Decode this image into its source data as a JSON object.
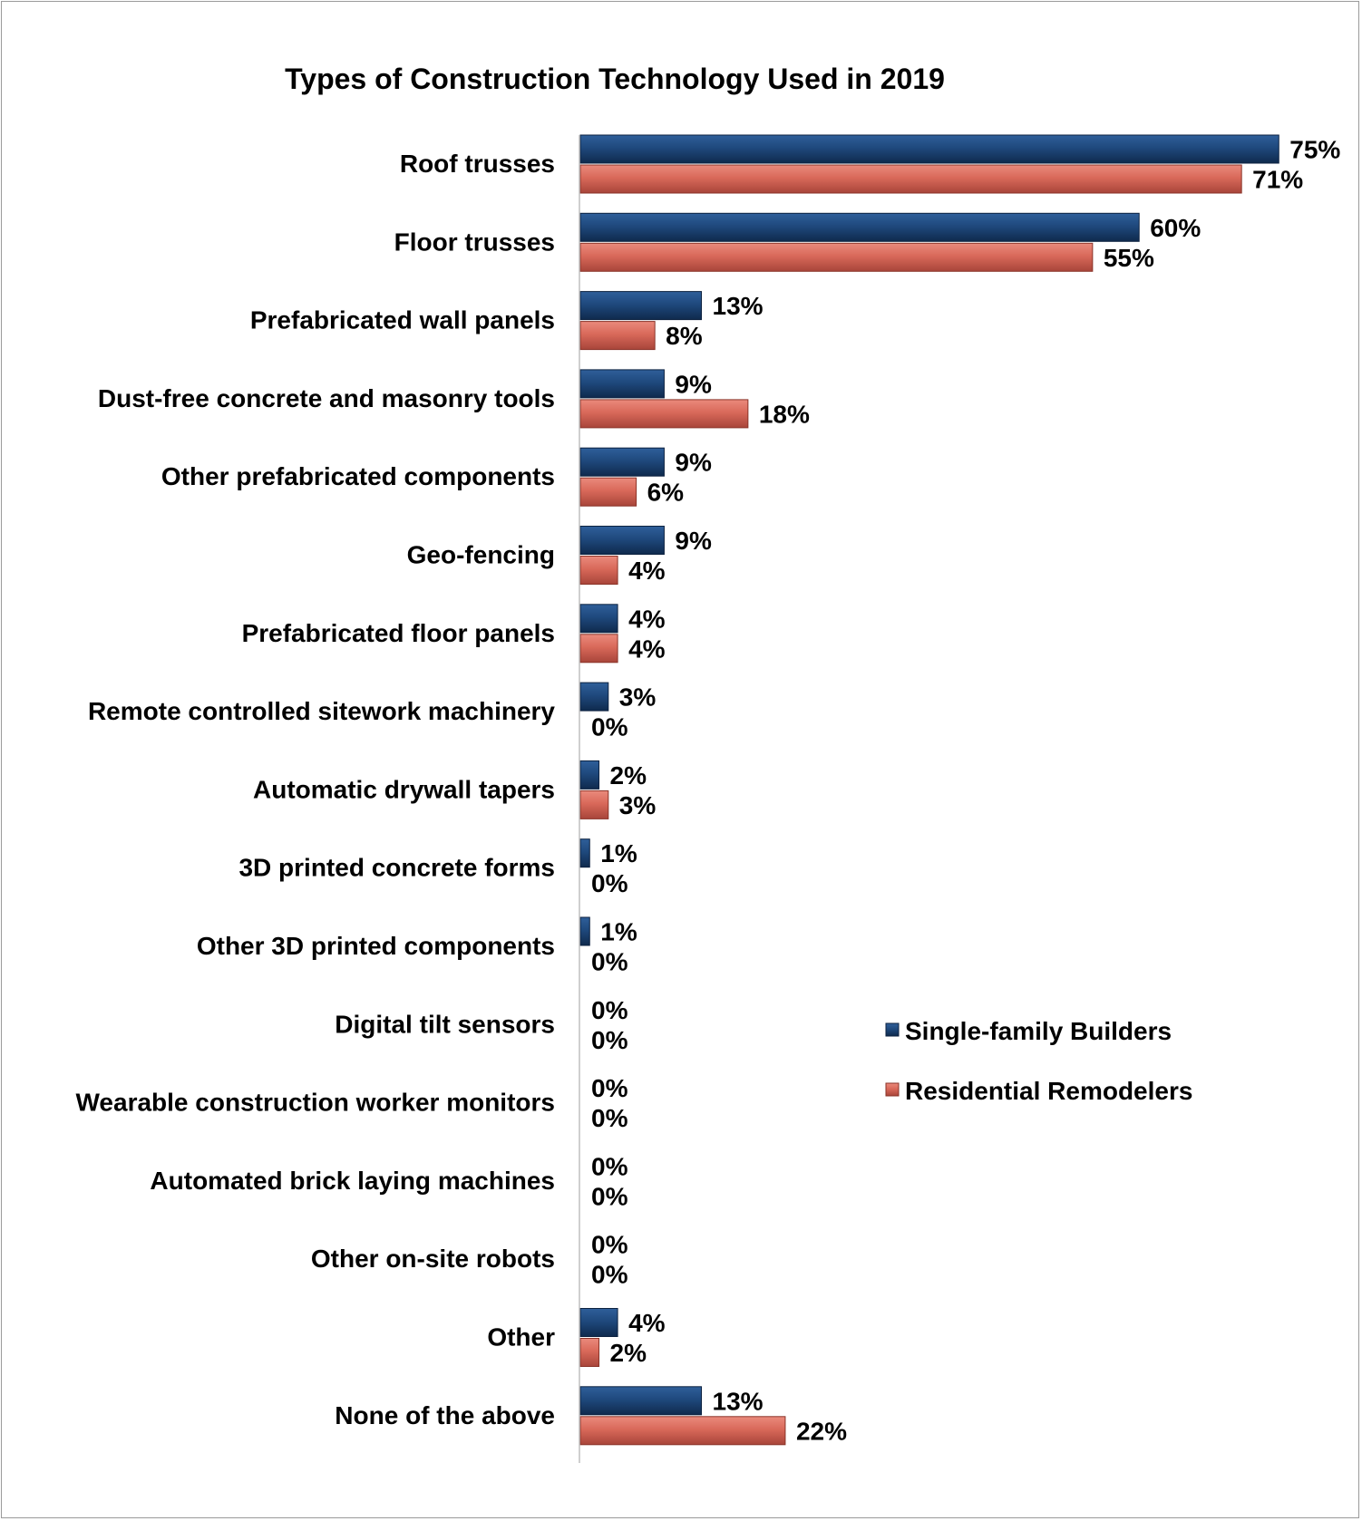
{
  "chart_data": {
    "type": "bar",
    "orientation": "horizontal",
    "title": "Types of Construction Technology Used in 2019",
    "categories": [
      "Roof trusses",
      "Floor trusses",
      "Prefabricated wall panels",
      "Dust-free concrete and masonry tools",
      "Other prefabricated components",
      "Geo-fencing",
      "Prefabricated floor panels",
      "Remote controlled sitework machinery",
      "Automatic drywall tapers",
      "3D printed concrete forms",
      "Other 3D printed components",
      "Digital tilt sensors",
      "Wearable construction worker monitors",
      "Automated brick laying machines",
      "Other on-site robots",
      "Other",
      "None of the above"
    ],
    "series": [
      {
        "name": "Single-family Builders",
        "color": "#1f497d",
        "values": [
          75,
          60,
          13,
          9,
          9,
          9,
          4,
          3,
          2,
          1,
          1,
          0,
          0,
          0,
          0,
          4,
          13
        ],
        "labels": [
          "75%",
          "60%",
          "13%",
          "9%",
          "9%",
          "9%",
          "4%",
          "3%",
          "2%",
          "1%",
          "1%",
          "0%",
          "0%",
          "0%",
          "0%",
          "4%",
          "13%"
        ]
      },
      {
        "name": "Residential Remodelers",
        "color": "#d9695a",
        "values": [
          71,
          55,
          8,
          18,
          6,
          4,
          4,
          0,
          3,
          0,
          0,
          0,
          0,
          0,
          0,
          2,
          22
        ],
        "labels": [
          "71%",
          "55%",
          "8%",
          "18%",
          "6%",
          "4%",
          "4%",
          "0%",
          "3%",
          "0%",
          "0%",
          "0%",
          "0%",
          "0%",
          "0%",
          "2%",
          "22%"
        ]
      }
    ],
    "xlim": [
      0,
      80
    ],
    "value_unit": "%",
    "grid": false,
    "legend": "right"
  }
}
